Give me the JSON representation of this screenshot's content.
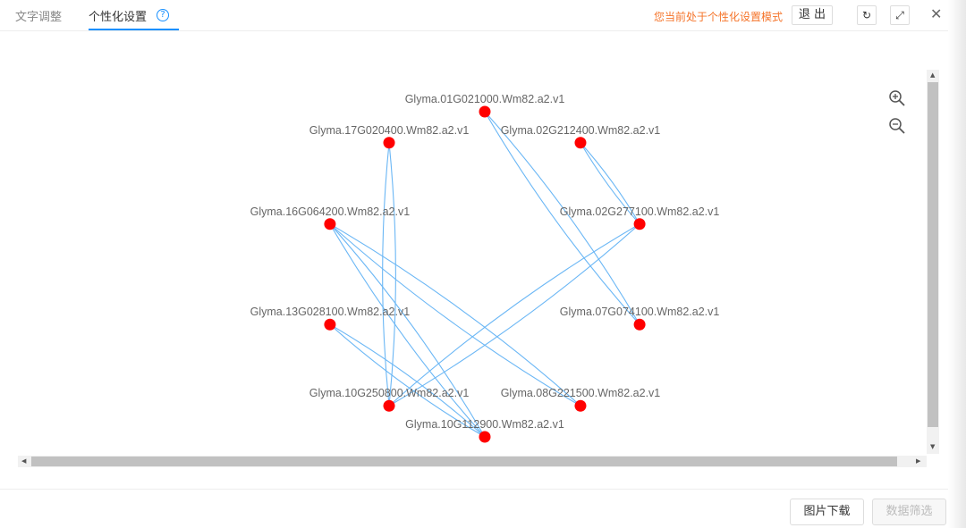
{
  "tabs": [
    {
      "label": "文字调整"
    },
    {
      "label": "个性化设置"
    }
  ],
  "help_icon": "question-circle-icon",
  "mode_text": "您当前处于个性化设置模式",
  "exit_label": "退 出",
  "icons": {
    "reset": "refresh-icon",
    "fullscreen": "fullscreen-icon",
    "close": "close-icon",
    "zoom_in": "zoom-in-icon",
    "zoom_out": "zoom-out-icon"
  },
  "colors": {
    "node": "#ff0000",
    "edge": "#6bb7f5",
    "accent": "#1890ff",
    "mode": "#f5742a"
  },
  "graph": {
    "layout": "circular",
    "nodes": [
      "Glyma.01G021000.Wm82.a2.v1",
      "Glyma.02G212400.Wm82.a2.v1",
      "Glyma.02G277100.Wm82.a2.v1",
      "Glyma.07G074100.Wm82.a2.v1",
      "Glyma.08G221500.Wm82.a2.v1",
      "Glyma.10G112900.Wm82.a2.v1",
      "Glyma.10G250800.Wm82.a2.v1",
      "Glyma.13G028100.Wm82.a2.v1",
      "Glyma.16G064200.Wm82.a2.v1",
      "Glyma.17G020400.Wm82.a2.v1"
    ],
    "edges": [
      [
        "Glyma.17G020400.Wm82.a2.v1",
        "Glyma.10G250800.Wm82.a2.v1"
      ],
      [
        "Glyma.01G021000.Wm82.a2.v1",
        "Glyma.07G074100.Wm82.a2.v1"
      ],
      [
        "Glyma.02G212400.Wm82.a2.v1",
        "Glyma.02G277100.Wm82.a2.v1"
      ],
      [
        "Glyma.16G064200.Wm82.a2.v1",
        "Glyma.10G112900.Wm82.a2.v1"
      ],
      [
        "Glyma.16G064200.Wm82.a2.v1",
        "Glyma.08G221500.Wm82.a2.v1"
      ],
      [
        "Glyma.02G277100.Wm82.a2.v1",
        "Glyma.10G250800.Wm82.a2.v1"
      ],
      [
        "Glyma.13G028100.Wm82.a2.v1",
        "Glyma.10G112900.Wm82.a2.v1"
      ]
    ]
  },
  "footer": {
    "download": "图片下载",
    "filter": "数据筛选"
  }
}
